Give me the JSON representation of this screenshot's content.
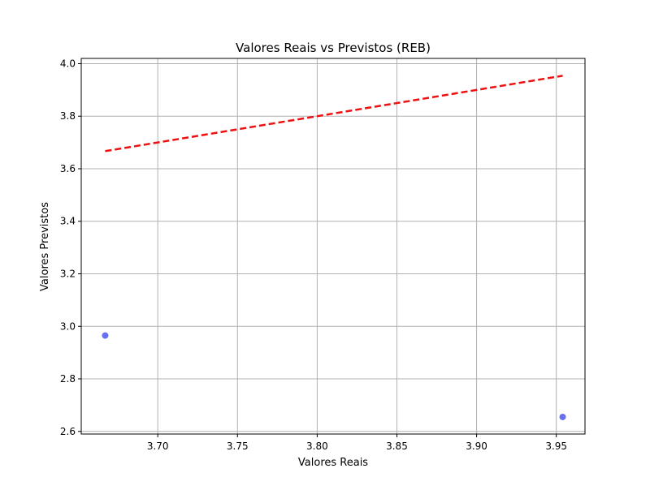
{
  "chart_data": {
    "type": "scatter",
    "title": "Valores Reais vs Previstos (REB)",
    "xlabel": "Valores Reais",
    "ylabel": "Valores Previstos",
    "xlim": [
      3.652,
      3.968
    ],
    "ylim": [
      2.59,
      4.02
    ],
    "xticks": [
      3.7,
      3.75,
      3.8,
      3.85,
      3.9,
      3.95
    ],
    "xtick_labels": [
      "3.70",
      "3.75",
      "3.80",
      "3.85",
      "3.90",
      "3.95"
    ],
    "yticks": [
      2.6,
      2.8,
      3.0,
      3.2,
      3.4,
      3.6,
      3.8,
      4.0
    ],
    "ytick_labels": [
      "2.6",
      "2.8",
      "3.0",
      "3.2",
      "3.4",
      "3.6",
      "3.8",
      "4.0"
    ],
    "grid": true,
    "series": [
      {
        "kind": "points",
        "color": "#6670f0",
        "points": [
          {
            "x": 3.667,
            "y": 2.965
          },
          {
            "x": 3.954,
            "y": 2.655
          }
        ]
      },
      {
        "kind": "reference-line",
        "style": "dashed",
        "color": "#ee1111",
        "points": [
          {
            "x": 3.667,
            "y": 3.667
          },
          {
            "x": 3.954,
            "y": 3.954
          }
        ]
      }
    ]
  }
}
